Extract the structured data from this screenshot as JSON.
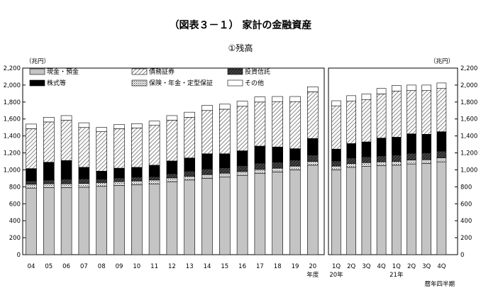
{
  "title": "（図表３－１） 家計の金融資産",
  "subtitle": "①残高",
  "chart_data": [
    {
      "type": "bar",
      "stacked": true,
      "panel": "annual",
      "ylabel": "（兆円）",
      "xlabel": "年度",
      "ylim": [
        0,
        2200
      ],
      "yticks": [
        0,
        200,
        400,
        600,
        800,
        1000,
        1200,
        1400,
        1600,
        1800,
        2000,
        2200
      ],
      "ytick_labels": [
        "0",
        "200",
        "400",
        "600",
        "800",
        "1,000",
        "1,200",
        "1,400",
        "1,600",
        "1,800",
        "2,000",
        "2,200"
      ],
      "categories": [
        "04",
        "05",
        "06",
        "07",
        "08",
        "09",
        "10",
        "11",
        "12",
        "13",
        "14",
        "15",
        "16",
        "17",
        "18",
        "19",
        "20"
      ],
      "series": [
        {
          "name": "現金・預金",
          "pattern": "gray",
          "values": [
            785,
            790,
            790,
            795,
            805,
            815,
            825,
            835,
            860,
            880,
            900,
            915,
            935,
            960,
            975,
            1000,
            1055
          ]
        },
        {
          "name": "保険・年金・定型保証",
          "pattern": "dots",
          "values": [
            45,
            45,
            45,
            45,
            45,
            45,
            45,
            45,
            45,
            45,
            45,
            45,
            45,
            45,
            45,
            45,
            45
          ]
        },
        {
          "name": "投資信託",
          "pattern": "dark",
          "values": [
            40,
            45,
            55,
            55,
            40,
            45,
            45,
            40,
            50,
            60,
            65,
            65,
            70,
            75,
            70,
            70,
            75
          ]
        },
        {
          "name": "株式等",
          "pattern": "black",
          "values": [
            145,
            210,
            220,
            135,
            95,
            115,
            115,
            135,
            150,
            155,
            180,
            165,
            175,
            200,
            180,
            135,
            195
          ]
        },
        {
          "name": "債務証券",
          "pattern": "hatch",
          "values": [
            470,
            475,
            475,
            470,
            465,
            465,
            465,
            470,
            480,
            480,
            510,
            525,
            525,
            520,
            535,
            555,
            550
          ]
        },
        {
          "name": "その他",
          "pattern": "white",
          "values": [
            55,
            55,
            55,
            55,
            50,
            50,
            50,
            50,
            55,
            60,
            60,
            60,
            60,
            60,
            60,
            60,
            60
          ]
        }
      ]
    },
    {
      "type": "bar",
      "stacked": true,
      "panel": "quarterly",
      "ylabel": "（兆円）",
      "xlabel": "暦年四半期",
      "ylim": [
        0,
        2200
      ],
      "yticks": [
        0,
        200,
        400,
        600,
        800,
        1000,
        1200,
        1400,
        1600,
        1800,
        2000,
        2200
      ],
      "ytick_labels": [
        "0",
        "200",
        "400",
        "600",
        "800",
        "1,000",
        "1,200",
        "1,400",
        "1,600",
        "1,800",
        "2,000",
        "2,200"
      ],
      "categories": [
        "1Q",
        "2Q",
        "3Q",
        "4Q",
        "1Q",
        "2Q",
        "3Q",
        "4Q"
      ],
      "year_labels": [
        {
          "label": "20年",
          "index": 0
        },
        {
          "label": "21年",
          "index": 4
        }
      ],
      "series": [
        {
          "name": "現金・預金",
          "pattern": "gray",
          "values": [
            1000,
            1030,
            1040,
            1050,
            1055,
            1070,
            1075,
            1095
          ]
        },
        {
          "name": "保険・年金・定型保証",
          "pattern": "dots",
          "values": [
            45,
            45,
            45,
            45,
            45,
            45,
            45,
            45
          ]
        },
        {
          "name": "投資信託",
          "pattern": "dark",
          "values": [
            60,
            65,
            70,
            70,
            75,
            80,
            80,
            80
          ]
        },
        {
          "name": "株式等",
          "pattern": "black",
          "values": [
            140,
            170,
            175,
            210,
            210,
            230,
            220,
            230
          ]
        },
        {
          "name": "債務証券",
          "pattern": "hatch",
          "values": [
            510,
            500,
            500,
            520,
            545,
            510,
            515,
            510
          ]
        },
        {
          "name": "その他",
          "pattern": "white",
          "values": [
            60,
            65,
            65,
            65,
            65,
            65,
            65,
            65
          ]
        }
      ]
    }
  ],
  "legend": [
    {
      "label": "現金・預金",
      "pattern": "gray"
    },
    {
      "label": "債務証券",
      "pattern": "hatch"
    },
    {
      "label": "投資信託",
      "pattern": "dark"
    },
    {
      "label": "株式等",
      "pattern": "black"
    },
    {
      "label": "保険・年金・定型保証",
      "pattern": "dots"
    },
    {
      "label": "その他",
      "pattern": "white"
    }
  ]
}
